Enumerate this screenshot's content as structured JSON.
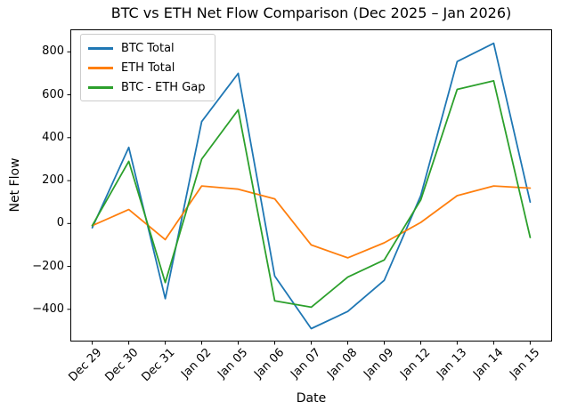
{
  "chart_data": {
    "type": "line",
    "title": "BTC vs ETH Net Flow Comparison (Dec 2025 – Jan 2026)",
    "xlabel": "Date",
    "ylabel": "Net Flow",
    "categories": [
      "Dec 29",
      "Dec 30",
      "Dec 31",
      "Jan 02",
      "Jan 05",
      "Jan 06",
      "Jan 07",
      "Jan 08",
      "Jan 09",
      "Jan 12",
      "Jan 13",
      "Jan 14",
      "Jan 15"
    ],
    "series": [
      {
        "name": "BTC Total",
        "color": "#1f77b4",
        "values": [
          -20,
          355,
          -350,
          475,
          700,
          -245,
          -490,
          -410,
          -265,
          130,
          755,
          840,
          100
        ]
      },
      {
        "name": "ETH Total",
        "color": "#ff7f0e",
        "values": [
          -10,
          65,
          -75,
          175,
          160,
          115,
          -100,
          -160,
          -90,
          5,
          130,
          175,
          165
        ]
      },
      {
        "name": "BTC - ETH Gap",
        "color": "#2ca02c",
        "values": [
          -10,
          290,
          -275,
          300,
          530,
          -360,
          -390,
          -250,
          -170,
          110,
          625,
          665,
          -65
        ]
      }
    ],
    "yticks": [
      -400,
      -200,
      0,
      200,
      400,
      600,
      800
    ],
    "ylim": [
      -550,
      905
    ],
    "legend_position": "upper left",
    "grid": false,
    "x_tick_rotation": 45
  },
  "colors": {
    "background": "#ffffff",
    "axis": "#000000",
    "text": "#000000",
    "legend_border": "#cccccc"
  }
}
